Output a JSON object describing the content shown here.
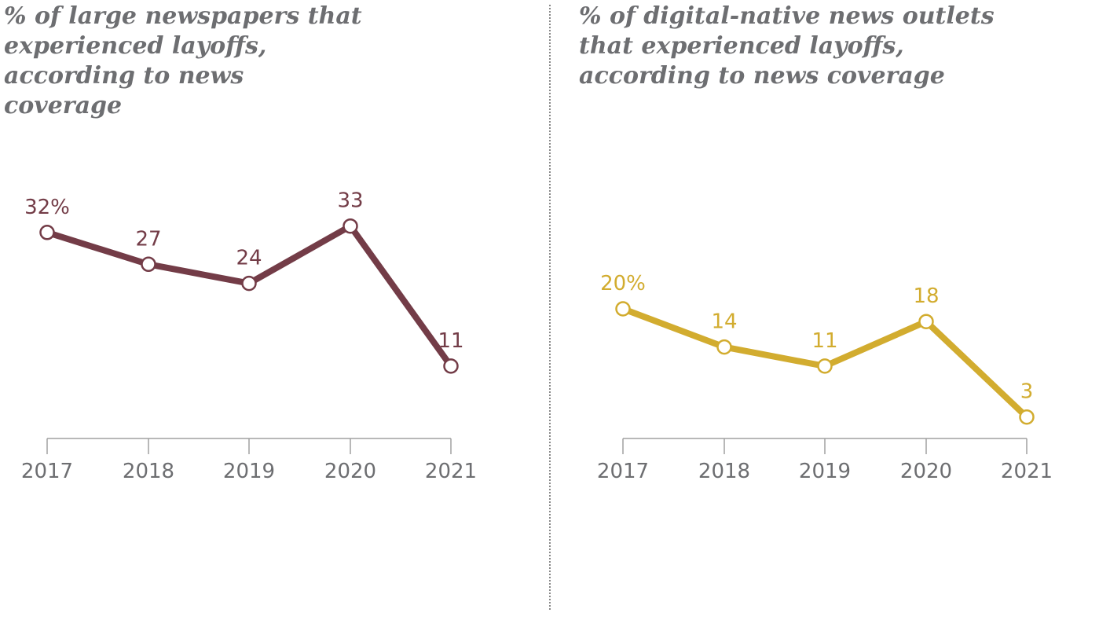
{
  "chart_data": [
    {
      "type": "line",
      "title": "% of large newspapers that experienced layoffs, according to news coverage",
      "categories": [
        "2017",
        "2018",
        "2019",
        "2020",
        "2021"
      ],
      "values": [
        32,
        27,
        24,
        33,
        11
      ],
      "value_labels": [
        "32%",
        "27",
        "24",
        "33",
        "11"
      ],
      "color": "#733c47",
      "xlabel": "",
      "ylabel": "",
      "grid": false
    },
    {
      "type": "line",
      "title": "% of digital-native news outlets that experienced layoffs, according to news coverage",
      "categories": [
        "2017",
        "2018",
        "2019",
        "2020",
        "2021"
      ],
      "values": [
        20,
        14,
        11,
        18,
        3
      ],
      "value_labels": [
        "20%",
        "14",
        "11",
        "18",
        "3"
      ],
      "color": "#d2ac2f",
      "xlabel": "",
      "ylabel": "",
      "grid": false
    }
  ]
}
